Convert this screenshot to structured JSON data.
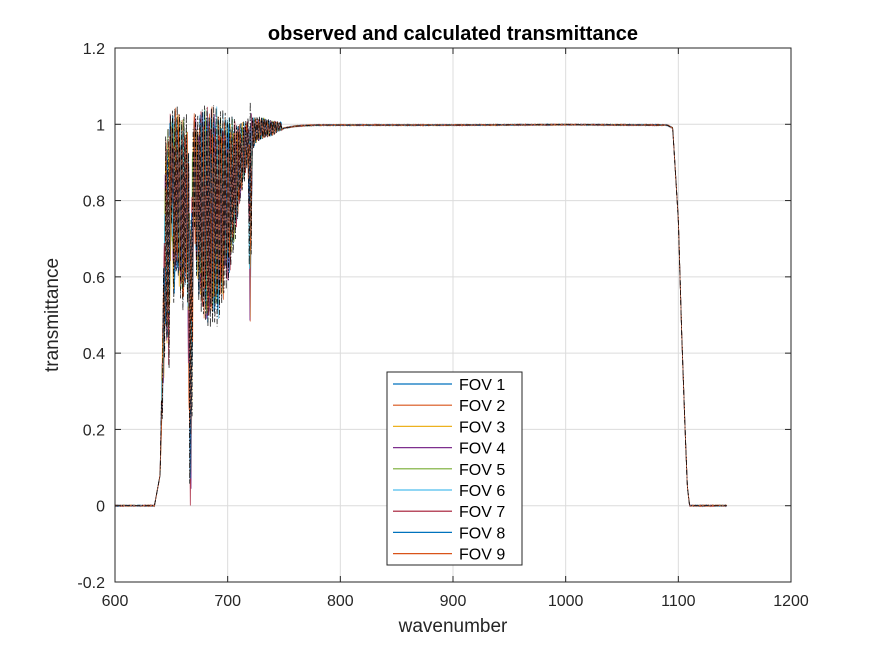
{
  "chart_data": {
    "type": "line",
    "title": "observed and calculated transmittance",
    "xlabel": "wavenumber",
    "ylabel": "transmittance",
    "xlim": [
      600,
      1200
    ],
    "ylim": [
      -0.2,
      1.2
    ],
    "xticks": [
      600,
      700,
      800,
      900,
      1000,
      1100,
      1200
    ],
    "yticks": [
      -0.2,
      0,
      0.2,
      0.4,
      0.6,
      0.8,
      1,
      1.2
    ],
    "xtick_labels": [
      "600",
      "700",
      "800",
      "900",
      "1000",
      "1100",
      "1200"
    ],
    "ytick_labels": [
      "-0.2",
      "0",
      "0.2",
      "0.4",
      "0.6",
      "0.8",
      "1",
      "1.2"
    ],
    "grid": true,
    "legend_position": "bottom-center",
    "envelope": {
      "x": [
        600,
        635,
        640,
        645,
        648,
        650,
        652,
        655,
        660,
        664,
        666,
        667,
        668,
        670,
        672,
        675,
        680,
        690,
        700,
        705,
        710,
        715,
        718,
        720,
        722,
        725,
        730,
        740,
        750,
        760,
        770,
        780,
        800,
        900,
        1000,
        1090,
        1095,
        1100,
        1103,
        1106,
        1108,
        1110,
        1143
      ],
      "y": [
        0,
        0,
        0.08,
        0.45,
        0.35,
        0.75,
        0.52,
        0.62,
        0.5,
        0.6,
        0.12,
        -0.09,
        0.1,
        0.75,
        0.6,
        0.52,
        0.47,
        0.46,
        0.58,
        0.65,
        0.78,
        0.85,
        0.9,
        0.4,
        0.93,
        0.95,
        0.96,
        0.97,
        0.99,
        0.995,
        0.997,
        0.998,
        0.998,
        0.998,
        0.999,
        0.998,
        0.99,
        0.75,
        0.45,
        0.2,
        0.05,
        0,
        0
      ],
      "upper": [
        0,
        0,
        0.08,
        0.97,
        1.0,
        1.06,
        1.04,
        1.05,
        1.02,
        1.03,
        0.9,
        0.7,
        0.9,
        1.04,
        1.02,
        1.04,
        1.05,
        1.05,
        1.03,
        1.02,
        1.0,
        1.01,
        1.02,
        1.06,
        1.02,
        1.02,
        1.02,
        1.01,
        1.005,
        1.0,
        1.0,
        0.999,
        0.998,
        0.998,
        0.999,
        0.998,
        0.99,
        0.75,
        0.45,
        0.2,
        0.05,
        0,
        0
      ]
    },
    "series": [
      {
        "name": "FOV 1",
        "color": "#0072BD"
      },
      {
        "name": "FOV 2",
        "color": "#D95319"
      },
      {
        "name": "FOV 3",
        "color": "#EDB120"
      },
      {
        "name": "FOV 4",
        "color": "#7E2F8E"
      },
      {
        "name": "FOV 5",
        "color": "#77AC30"
      },
      {
        "name": "FOV 6",
        "color": "#4DBEEE"
      },
      {
        "name": "FOV 7",
        "color": "#A2142F"
      },
      {
        "name": "FOV 8",
        "color": "#0072BD"
      },
      {
        "name": "FOV 9",
        "color": "#D95319"
      }
    ]
  }
}
